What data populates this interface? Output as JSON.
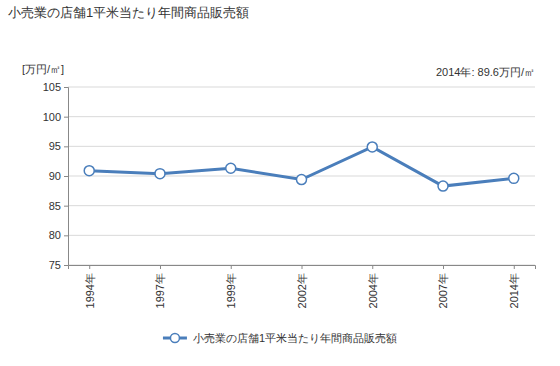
{
  "chart_data": {
    "type": "line",
    "title": "小売業の店舗1平米当たり年間商品販売額",
    "ylabel": "[万円/㎡]",
    "annotations": [
      "2014年: 89.6万円/㎡"
    ],
    "categories": [
      "1994年",
      "1997年",
      "1999年",
      "2002年",
      "2004年",
      "2007年",
      "2014年"
    ],
    "series": [
      {
        "name": "小売業の店舗1平米当たり年間商品販売額",
        "color": "#4a7ebb",
        "marker": "circle",
        "values": [
          90.9,
          90.4,
          91.3,
          89.4,
          94.9,
          88.3,
          89.6
        ]
      }
    ],
    "ylim": [
      75,
      105
    ],
    "yticks": [
      75,
      80,
      85,
      90,
      95,
      100,
      105
    ],
    "grid": true,
    "legend": "bottom"
  }
}
